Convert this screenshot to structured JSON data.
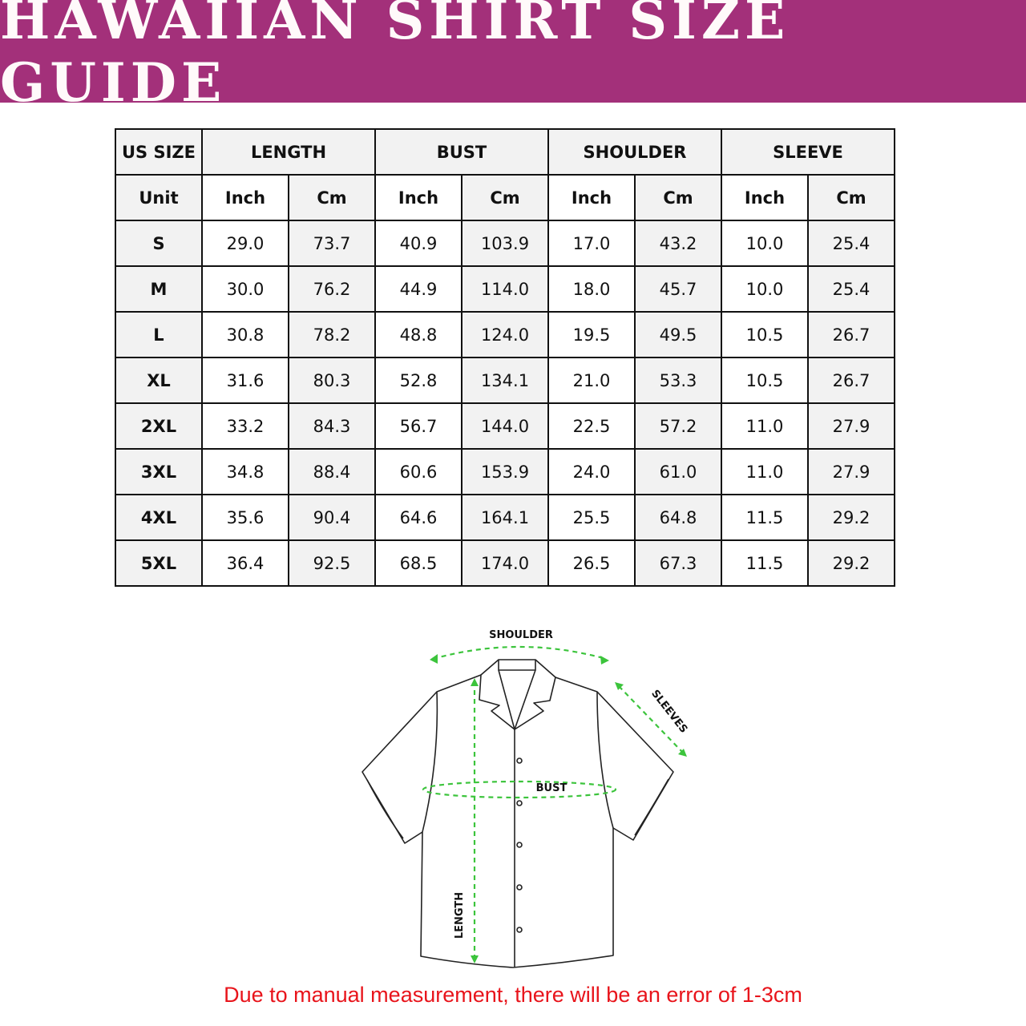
{
  "title": "HAWAIIAN SHIRT SIZE GUIDE",
  "colors": {
    "banner": "#a3307a",
    "measure_lines": "#3cc43c",
    "note": "#e8141b"
  },
  "table": {
    "group_headers": [
      "US SIZE",
      "LENGTH",
      "BUST",
      "SHOULDER",
      "SLEEVE"
    ],
    "unit_row": [
      "Unit",
      "Inch",
      "Cm",
      "Inch",
      "Cm",
      "Inch",
      "Cm",
      "Inch",
      "Cm"
    ],
    "rows": [
      [
        "S",
        "29.0",
        "73.7",
        "40.9",
        "103.9",
        "17.0",
        "43.2",
        "10.0",
        "25.4"
      ],
      [
        "M",
        "30.0",
        "76.2",
        "44.9",
        "114.0",
        "18.0",
        "45.7",
        "10.0",
        "25.4"
      ],
      [
        "L",
        "30.8",
        "78.2",
        "48.8",
        "124.0",
        "19.5",
        "49.5",
        "10.5",
        "26.7"
      ],
      [
        "XL",
        "31.6",
        "80.3",
        "52.8",
        "134.1",
        "21.0",
        "53.3",
        "10.5",
        "26.7"
      ],
      [
        "2XL",
        "33.2",
        "84.3",
        "56.7",
        "144.0",
        "22.5",
        "57.2",
        "11.0",
        "27.9"
      ],
      [
        "3XL",
        "34.8",
        "88.4",
        "60.6",
        "153.9",
        "24.0",
        "61.0",
        "11.0",
        "27.9"
      ],
      [
        "4XL",
        "35.6",
        "90.4",
        "64.6",
        "164.1",
        "25.5",
        "64.8",
        "11.5",
        "29.2"
      ],
      [
        "5XL",
        "36.4",
        "92.5",
        "68.5",
        "174.0",
        "26.5",
        "67.3",
        "11.5",
        "29.2"
      ]
    ]
  },
  "diagram": {
    "shoulder": "SHOULDER",
    "sleeves": "SLEEVES",
    "bust": "BUST",
    "length": "LENGTH"
  },
  "note": "Due to manual measurement, there will be an error of 1-3cm"
}
